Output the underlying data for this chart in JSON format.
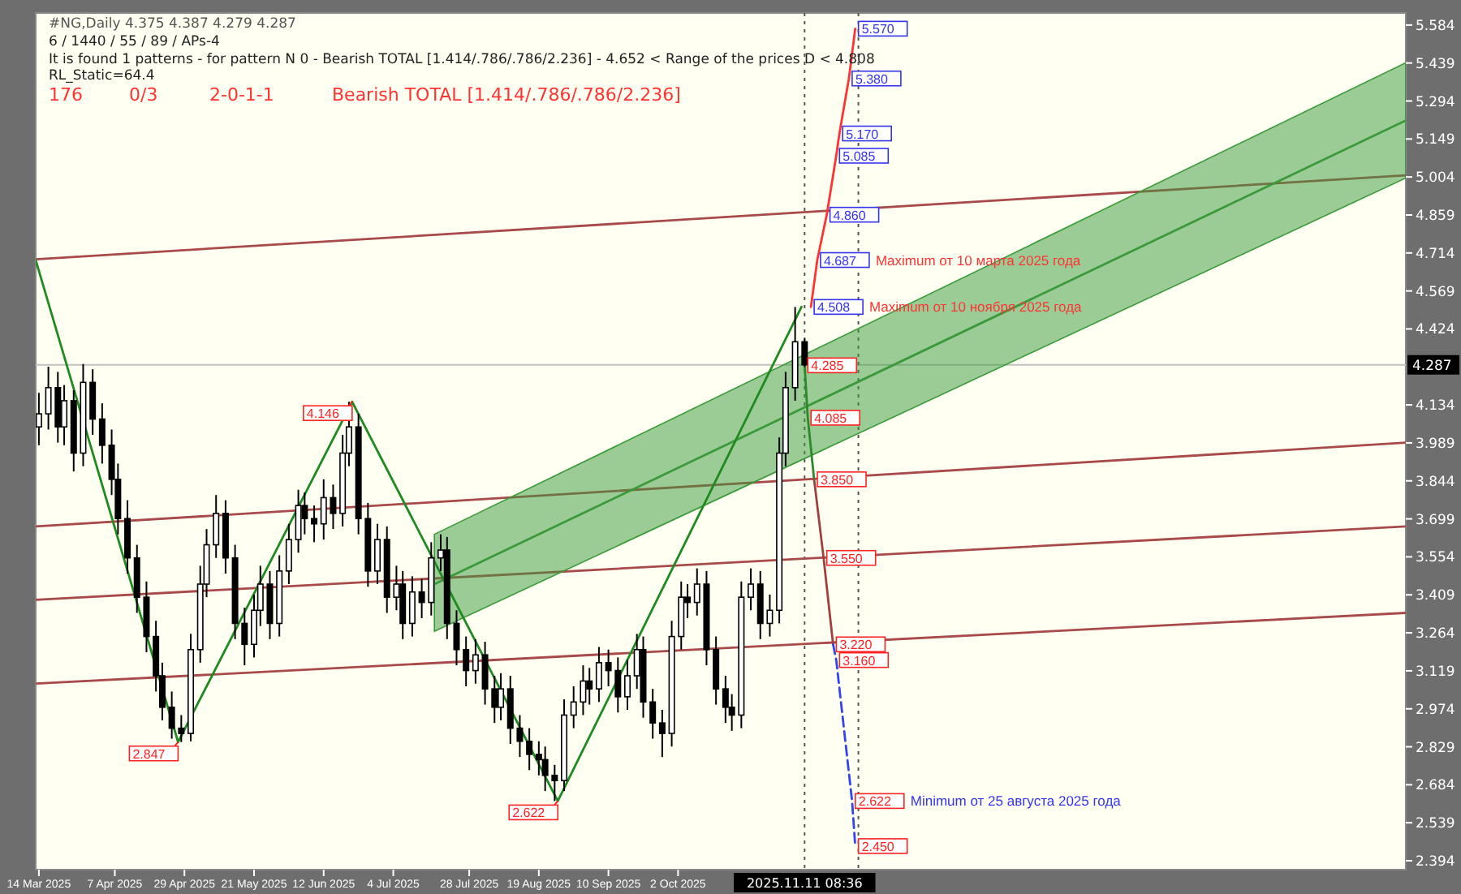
{
  "chart_data": {
    "type": "candlestick",
    "title": "#NG,Daily 4.375 4.387 4.279 4.287",
    "subtitle": "6 / 1440 / 55 / 89 / APs-4",
    "x": [
      "2025-03-14",
      "2025-03-17",
      "2025-03-20",
      "2025-03-22",
      "2025-03-25",
      "2025-03-28",
      "2025-03-31",
      "2025-04-03",
      "2025-04-06",
      "2025-04-08",
      "2025-04-11",
      "2025-04-14",
      "2025-04-17",
      "2025-04-20",
      "2025-04-22",
      "2025-04-25",
      "2025-04-28",
      "2025-05-01",
      "2025-05-04",
      "2025-05-06",
      "2025-05-09",
      "2025-05-12",
      "2025-05-15",
      "2025-05-18",
      "2025-05-21",
      "2025-05-23",
      "2025-05-26",
      "2025-05-29",
      "2025-06-01",
      "2025-06-04",
      "2025-06-06",
      "2025-06-09",
      "2025-06-12",
      "2025-06-15",
      "2025-06-18",
      "2025-06-20",
      "2025-06-23",
      "2025-06-26",
      "2025-06-29",
      "2025-07-02",
      "2025-07-05",
      "2025-07-07",
      "2025-07-10",
      "2025-07-13",
      "2025-07-16",
      "2025-07-19",
      "2025-07-21",
      "2025-07-24",
      "2025-07-27",
      "2025-07-30",
      "2025-08-02",
      "2025-08-05",
      "2025-08-07",
      "2025-08-10",
      "2025-08-13",
      "2025-08-16",
      "2025-08-19",
      "2025-08-21",
      "2025-08-24",
      "2025-08-27",
      "2025-08-30",
      "2025-09-02",
      "2025-09-04",
      "2025-09-07",
      "2025-09-10",
      "2025-09-13",
      "2025-09-16",
      "2025-09-19",
      "2025-09-21",
      "2025-09-24",
      "2025-09-27",
      "2025-09-30",
      "2025-10-03",
      "2025-10-05",
      "2025-10-08",
      "2025-10-11",
      "2025-10-14",
      "2025-10-17",
      "2025-10-19",
      "2025-10-22",
      "2025-10-25",
      "2025-10-28",
      "2025-10-31",
      "2025-11-03",
      "2025-11-05",
      "2025-11-08",
      "2025-11-11"
    ],
    "ohlc": [
      [
        4.05,
        4.18,
        3.98,
        4.1
      ],
      [
        4.1,
        4.28,
        4.04,
        4.2
      ],
      [
        4.2,
        4.26,
        3.99,
        4.05
      ],
      [
        4.05,
        4.21,
        3.98,
        4.15
      ],
      [
        4.15,
        4.19,
        3.88,
        3.95
      ],
      [
        3.95,
        4.29,
        3.9,
        4.22
      ],
      [
        4.22,
        4.27,
        4.02,
        4.08
      ],
      [
        4.08,
        4.14,
        3.91,
        3.98
      ],
      [
        3.98,
        4.04,
        3.79,
        3.85
      ],
      [
        3.85,
        3.91,
        3.64,
        3.7
      ],
      [
        3.7,
        3.77,
        3.49,
        3.55
      ],
      [
        3.55,
        3.6,
        3.34,
        3.4
      ],
      [
        3.4,
        3.46,
        3.19,
        3.25
      ],
      [
        3.25,
        3.31,
        3.04,
        3.1
      ],
      [
        3.1,
        3.15,
        2.93,
        2.98
      ],
      [
        2.98,
        3.04,
        2.86,
        2.9
      ],
      [
        2.9,
        2.95,
        2.847,
        2.88
      ],
      [
        2.88,
        3.26,
        2.85,
        3.2
      ],
      [
        3.2,
        3.52,
        3.15,
        3.45
      ],
      [
        3.45,
        3.66,
        3.4,
        3.6
      ],
      [
        3.6,
        3.79,
        3.55,
        3.72
      ],
      [
        3.72,
        3.77,
        3.49,
        3.55
      ],
      [
        3.55,
        3.6,
        3.24,
        3.3
      ],
      [
        3.3,
        3.36,
        3.14,
        3.22
      ],
      [
        3.22,
        3.41,
        3.17,
        3.35
      ],
      [
        3.35,
        3.52,
        3.29,
        3.45
      ],
      [
        3.45,
        3.5,
        3.24,
        3.3
      ],
      [
        3.3,
        3.56,
        3.25,
        3.5
      ],
      [
        3.5,
        3.68,
        3.45,
        3.62
      ],
      [
        3.62,
        3.81,
        3.57,
        3.75
      ],
      [
        3.75,
        3.8,
        3.64,
        3.7
      ],
      [
        3.7,
        3.75,
        3.61,
        3.68
      ],
      [
        3.68,
        3.85,
        3.62,
        3.78
      ],
      [
        3.78,
        3.83,
        3.66,
        3.72
      ],
      [
        3.72,
        4.02,
        3.67,
        3.95
      ],
      [
        3.95,
        4.146,
        3.9,
        4.05
      ],
      [
        4.05,
        4.1,
        3.64,
        3.7
      ],
      [
        3.7,
        3.76,
        3.44,
        3.5
      ],
      [
        3.5,
        3.68,
        3.45,
        3.62
      ],
      [
        3.62,
        3.67,
        3.34,
        3.4
      ],
      [
        3.4,
        3.52,
        3.35,
        3.45
      ],
      [
        3.45,
        3.5,
        3.24,
        3.3
      ],
      [
        3.3,
        3.48,
        3.25,
        3.42
      ],
      [
        3.42,
        3.47,
        3.32,
        3.38
      ],
      [
        3.38,
        3.61,
        3.33,
        3.55
      ],
      [
        3.55,
        3.64,
        3.5,
        3.58
      ],
      [
        3.58,
        3.63,
        3.24,
        3.3
      ],
      [
        3.3,
        3.35,
        3.14,
        3.2
      ],
      [
        3.2,
        3.25,
        3.06,
        3.12
      ],
      [
        3.12,
        3.24,
        3.07,
        3.18
      ],
      [
        3.18,
        3.23,
        2.99,
        3.05
      ],
      [
        3.05,
        3.1,
        2.92,
        2.98
      ],
      [
        2.98,
        3.11,
        2.93,
        3.05
      ],
      [
        3.05,
        3.1,
        2.84,
        2.9
      ],
      [
        2.9,
        2.95,
        2.79,
        2.85
      ],
      [
        2.85,
        2.9,
        2.74,
        2.8
      ],
      [
        2.8,
        2.85,
        2.72,
        2.78
      ],
      [
        2.78,
        2.83,
        2.66,
        2.72
      ],
      [
        2.72,
        2.76,
        2.622,
        2.7
      ],
      [
        2.7,
        3.01,
        2.66,
        2.95
      ],
      [
        2.95,
        3.06,
        2.9,
        3.0
      ],
      [
        3.0,
        3.14,
        2.95,
        3.08
      ],
      [
        3.08,
        3.13,
        2.99,
        3.05
      ],
      [
        3.05,
        3.21,
        3.0,
        3.15
      ],
      [
        3.15,
        3.2,
        3.06,
        3.12
      ],
      [
        3.12,
        3.17,
        2.96,
        3.02
      ],
      [
        3.02,
        3.16,
        2.97,
        3.1
      ],
      [
        3.1,
        3.26,
        3.05,
        3.2
      ],
      [
        3.2,
        3.25,
        2.94,
        3.0
      ],
      [
        3.0,
        3.05,
        2.86,
        2.92
      ],
      [
        2.92,
        2.97,
        2.79,
        2.88
      ],
      [
        2.88,
        3.31,
        2.83,
        3.25
      ],
      [
        3.25,
        3.46,
        3.2,
        3.4
      ],
      [
        3.4,
        3.45,
        3.32,
        3.38
      ],
      [
        3.38,
        3.51,
        3.33,
        3.45
      ],
      [
        3.45,
        3.5,
        3.14,
        3.2
      ],
      [
        3.2,
        3.25,
        2.99,
        3.05
      ],
      [
        3.05,
        3.1,
        2.92,
        2.98
      ],
      [
        2.98,
        3.03,
        2.89,
        2.95
      ],
      [
        2.95,
        3.46,
        2.9,
        3.4
      ],
      [
        3.4,
        3.51,
        3.35,
        3.45
      ],
      [
        3.45,
        3.5,
        3.24,
        3.3
      ],
      [
        3.3,
        3.41,
        3.25,
        3.35
      ],
      [
        3.35,
        4.01,
        3.3,
        3.95
      ],
      [
        3.95,
        4.26,
        3.9,
        4.2
      ],
      [
        4.2,
        4.508,
        4.15,
        4.375
      ],
      [
        4.375,
        4.387,
        4.279,
        4.287
      ]
    ],
    "series": [
      {
        "type": "line",
        "color": "#a94a4a",
        "x": [
          "2025-03-13",
          "2026-05-20"
        ],
        "values": [
          3.07,
          3.34
        ]
      },
      {
        "type": "line",
        "color": "#a94a4a",
        "x": [
          "2025-03-13",
          "2026-05-20"
        ],
        "values": [
          3.39,
          3.67
        ]
      },
      {
        "type": "line",
        "color": "#a94a4a",
        "x": [
          "2025-03-13",
          "2026-05-20"
        ],
        "values": [
          3.67,
          3.99
        ]
      },
      {
        "type": "line",
        "color": "#a94a4a",
        "x": [
          "2025-03-13",
          "2026-05-20"
        ],
        "values": [
          4.69,
          5.01
        ]
      },
      {
        "type": "line",
        "color": "#3a9a3a",
        "x": [
          "2025-07-17",
          "2026-05-20"
        ],
        "values": [
          3.45,
          5.22
        ],
        "lower": [
          3.27,
          5.0
        ],
        "upper": [
          3.64,
          5.44
        ]
      },
      {
        "type": "line",
        "color": "#1f8a1f",
        "x": [
          "2025-03-13",
          "2025-04-27",
          "2025-06-21",
          "2025-08-25",
          "2025-11-10"
        ],
        "values": [
          4.687,
          2.847,
          4.146,
          2.622,
          4.508
        ]
      },
      {
        "type": "line",
        "color": "#ff3333",
        "x": [
          "2025-11-13",
          "2025-11-15",
          "2025-11-18",
          "2025-11-21",
          "2025-11-22",
          "2025-11-25",
          "2025-11-27"
        ],
        "values": [
          4.508,
          4.687,
          4.86,
          5.085,
          5.17,
          5.38,
          5.57
        ]
      },
      {
        "type": "line",
        "color": "#2a8a2a",
        "x": [
          "2025-11-11",
          "2025-11-12",
          "2025-11-14"
        ],
        "values": [
          4.285,
          4.085,
          3.85
        ]
      },
      {
        "type": "line",
        "color": "#a0403c",
        "x": [
          "2025-11-14",
          "2025-11-17",
          "2025-11-20"
        ],
        "values": [
          3.85,
          3.55,
          3.22
        ]
      },
      {
        "type": "line",
        "color": "#3344ee",
        "line_style": "dashed",
        "x": [
          "2025-11-20",
          "2025-11-21",
          "2025-11-26",
          "2025-11-27"
        ],
        "values": [
          3.22,
          3.16,
          2.622,
          2.45
        ]
      }
    ],
    "xlim": [
      "2025-03-13",
      "2026-05-20"
    ],
    "xticks": [
      {
        "value": "2025-03-14",
        "label": "14 Mar 2025"
      },
      {
        "value": "2025-04-07",
        "label": "7 Apr 2025"
      },
      {
        "value": "2025-04-29",
        "label": "29 Apr 2025"
      },
      {
        "value": "2025-05-21",
        "label": "21 May 2025"
      },
      {
        "value": "2025-06-12",
        "label": "12 Jun 2025"
      },
      {
        "value": "2025-07-04",
        "label": "4 Jul 2025"
      },
      {
        "value": "2025-07-28",
        "label": "28 Jul 2025"
      },
      {
        "value": "2025-08-19",
        "label": "19 Aug 2025"
      },
      {
        "value": "2025-09-10",
        "label": "10 Sep 2025"
      },
      {
        "value": "2025-10-02",
        "label": "2 Oct 2025"
      }
    ],
    "ylim": [
      2.36,
      5.63
    ],
    "yticks": [
      2.394,
      2.539,
      2.684,
      2.829,
      2.974,
      3.119,
      3.264,
      3.409,
      3.554,
      3.699,
      3.844,
      3.989,
      4.134,
      4.424,
      4.569,
      4.714,
      4.859,
      5.004,
      5.149,
      5.294,
      5.439,
      5.584
    ],
    "ref_lines": [
      {
        "axis": "y",
        "value": 4.287,
        "label": "4.287",
        "color": "#c0c0c0"
      },
      {
        "axis": "x",
        "value": "2025-11-11",
        "label": "2025.11.11 08:36",
        "color": "#555555",
        "line_style": "dotted"
      },
      {
        "axis": "x",
        "value": "2025-11-28",
        "label": null,
        "color": "#555555",
        "line_style": "dotted"
      }
    ],
    "annotations": [
      "It is found 1 patterns  -  for pattern N 0 - Bearish TOTAL [1.414/.786/.786/2.236] - 4.652 < Range of the prices D < 4.808",
      "RL_Static=64.4",
      "176",
      "0/3",
      "2-0-1-1",
      "Bearish TOTAL [1.414/.786/.786/2.236]",
      {
        "text": "2.847",
        "x": "2025-04-27",
        "y": 2.847
      },
      {
        "text": "4.146",
        "x": "2025-06-21",
        "y": 4.146
      },
      {
        "text": "2.622",
        "x": "2025-08-25",
        "y": 2.622
      },
      {
        "text": "5.570",
        "x": "2025-11-27",
        "y": 5.57
      },
      {
        "text": "5.380",
        "x": "2025-11-25",
        "y": 5.38
      },
      {
        "text": "5.170",
        "x": "2025-11-22",
        "y": 5.17
      },
      {
        "text": "5.085",
        "x": "2025-11-21",
        "y": 5.085
      },
      {
        "text": "4.860",
        "x": "2025-11-18",
        "y": 4.86
      },
      {
        "text": "4.687",
        "x": "2025-11-15",
        "y": 4.687
      },
      "Maximum от 10 марта 2025 года",
      {
        "text": "4.508",
        "x": "2025-11-13",
        "y": 4.508
      },
      "Maximum от 10 ноября 2025 года",
      {
        "text": "4.285",
        "x": "2025-11-11",
        "y": 4.285
      },
      {
        "text": "4.085",
        "x": "2025-11-12",
        "y": 4.085
      },
      {
        "text": "3.850",
        "x": "2025-11-14",
        "y": 3.85
      },
      {
        "text": "3.550",
        "x": "2025-11-17",
        "y": 3.55
      },
      {
        "text": "3.220",
        "x": "2025-11-20",
        "y": 3.22
      },
      {
        "text": "3.160",
        "x": "2025-11-21",
        "y": 3.16
      },
      {
        "text": "2.622",
        "x": "2025-11-26",
        "y": 2.622
      },
      "Minimum от 25 августа 2025 года",
      {
        "text": "2.450",
        "x": "2025-11-27",
        "y": 2.45
      }
    ]
  }
}
